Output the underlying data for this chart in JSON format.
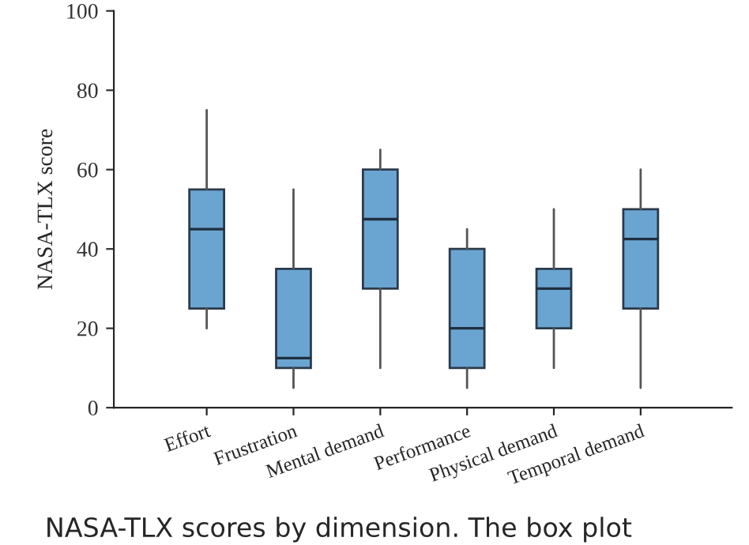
{
  "chart_data": {
    "type": "box",
    "ylabel": "NASA-TLX score",
    "categories": [
      "Effort",
      "Frustration",
      "Mental demand",
      "Performance",
      "Physical demand",
      "Temporal demand"
    ],
    "boxes": [
      {
        "low": 20,
        "q1": 25,
        "median": 45,
        "q3": 55,
        "high": 75
      },
      {
        "low": 5,
        "q1": 10,
        "median": 12.5,
        "q3": 35,
        "high": 55
      },
      {
        "low": 10,
        "q1": 30,
        "median": 47.5,
        "q3": 60,
        "high": 65
      },
      {
        "low": 5,
        "q1": 10,
        "median": 20,
        "q3": 40,
        "high": 45
      },
      {
        "low": 10,
        "q1": 20,
        "median": 30,
        "q3": 35,
        "high": 50
      },
      {
        "low": 5,
        "q1": 25,
        "median": 42.5,
        "q3": 50,
        "high": 60
      }
    ],
    "color": "#6aa5d2",
    "ylim": [
      0,
      100
    ],
    "yticks": [
      0,
      20,
      40,
      60,
      80,
      100
    ],
    "grid": false,
    "legend": false,
    "annotations": [
      "NASA-TLX scores by dimension. The box plot"
    ]
  }
}
